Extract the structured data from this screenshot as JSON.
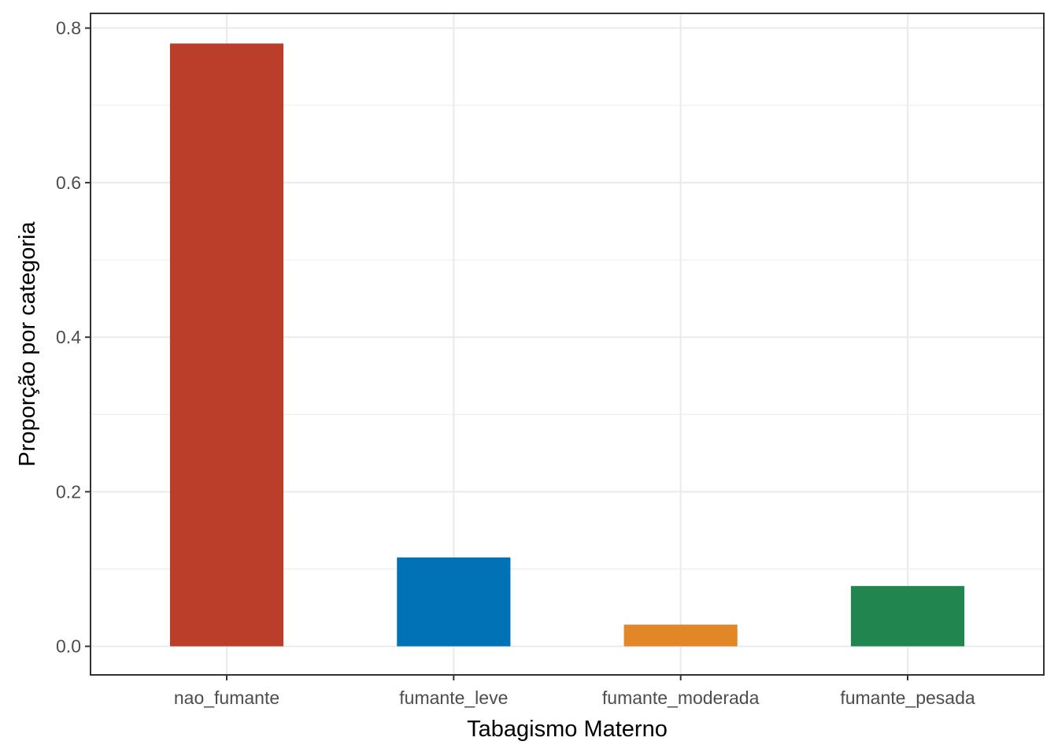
{
  "chart_data": {
    "type": "bar",
    "categories": [
      "nao_fumante",
      "fumante_leve",
      "fumante_moderada",
      "fumante_pesada"
    ],
    "values": [
      0.78,
      0.115,
      0.028,
      0.078
    ],
    "colors": [
      "#BB3E2A",
      "#0072B5",
      "#E18727",
      "#20854E"
    ],
    "xlabel": "Tabagismo Materno",
    "ylabel": "Proporção por categoria",
    "ylim": [
      -0.037,
      0.819
    ],
    "yticks": [
      0.0,
      0.2,
      0.4,
      0.6,
      0.8
    ],
    "ytick_labels": [
      "0.0",
      "0.2",
      "0.4",
      "0.6",
      "0.8"
    ],
    "grid": true,
    "legend": "none"
  }
}
